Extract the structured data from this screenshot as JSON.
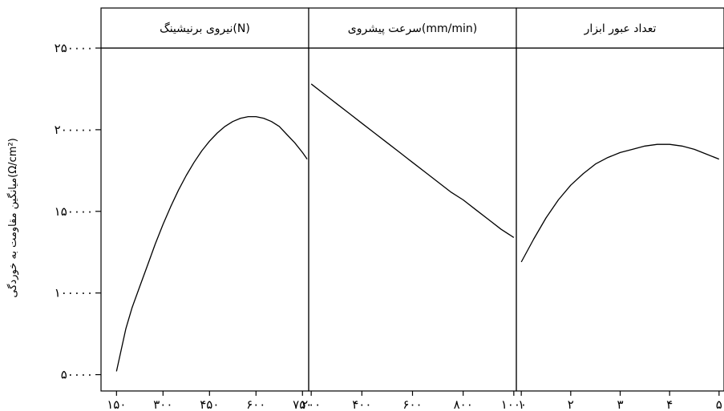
{
  "chart_data": {
    "type": "line",
    "ylabel": "میانگین مقاومت به خوردگی(Ω/cm²)",
    "ylim": [
      40000,
      250000
    ],
    "yticks": [
      50000,
      100000,
      150000,
      200000,
      250000
    ],
    "ytick_labels": [
      "۵۰۰۰۰",
      "۱۰۰۰۰۰",
      "۱۵۰۰۰۰",
      "۲۰۰۰۰۰",
      "۲۵۰۰۰۰"
    ],
    "panels": [
      {
        "title": "نیروی برنیشینگ(N)",
        "xlim": [
          100,
          770
        ],
        "xticks": [
          150,
          300,
          450,
          600,
          750
        ],
        "xtick_labels": [
          "۱۵۰",
          "۳۰۰",
          "۴۵۰",
          "۶۰۰",
          "۷۵۰"
        ],
        "x": [
          150,
          165,
          180,
          200,
          225,
          250,
          275,
          300,
          325,
          350,
          375,
          400,
          425,
          450,
          475,
          500,
          525,
          550,
          575,
          600,
          625,
          650,
          675,
          700,
          725,
          750,
          765
        ],
        "y": [
          52000,
          65000,
          78000,
          91000,
          104000,
          117000,
          130000,
          142000,
          153000,
          163000,
          172000,
          180000,
          187000,
          193000,
          198000,
          202000,
          205000,
          207000,
          208000,
          208000,
          207000,
          205000,
          202000,
          197000,
          192000,
          186000,
          182000
        ]
      },
      {
        "title": "سرعت پیشروی(mm/min)",
        "xlim": [
          190,
          1010
        ],
        "xticks": [
          200,
          400,
          600,
          800,
          1000
        ],
        "xtick_labels": [
          "۲۰۰",
          "۴۰۰",
          "۶۰۰",
          "۸۰۰",
          "۱۰۰۰"
        ],
        "x": [
          200,
          250,
          300,
          350,
          400,
          450,
          500,
          550,
          600,
          650,
          700,
          750,
          800,
          850,
          900,
          950,
          1000
        ],
        "y": [
          228000,
          222000,
          216000,
          210000,
          204000,
          198000,
          192000,
          186000,
          180000,
          174000,
          168000,
          162000,
          157000,
          151000,
          145000,
          139000,
          134000
        ]
      },
      {
        "title": "تعداد عبور ابزار",
        "xlim": [
          0.9,
          5.1
        ],
        "xticks": [
          1,
          2,
          3,
          4,
          5
        ],
        "xtick_labels": [
          "۱",
          "۲",
          "۳",
          "۴",
          "۵"
        ],
        "x": [
          1,
          1.25,
          1.5,
          1.75,
          2,
          2.25,
          2.5,
          2.75,
          3,
          3.25,
          3.5,
          3.75,
          4,
          4.25,
          4.5,
          4.75,
          5
        ],
        "y": [
          119000,
          133000,
          146000,
          157000,
          166000,
          173000,
          179000,
          183000,
          186000,
          188000,
          190000,
          191000,
          191000,
          190000,
          188000,
          185000,
          182000
        ]
      }
    ]
  }
}
